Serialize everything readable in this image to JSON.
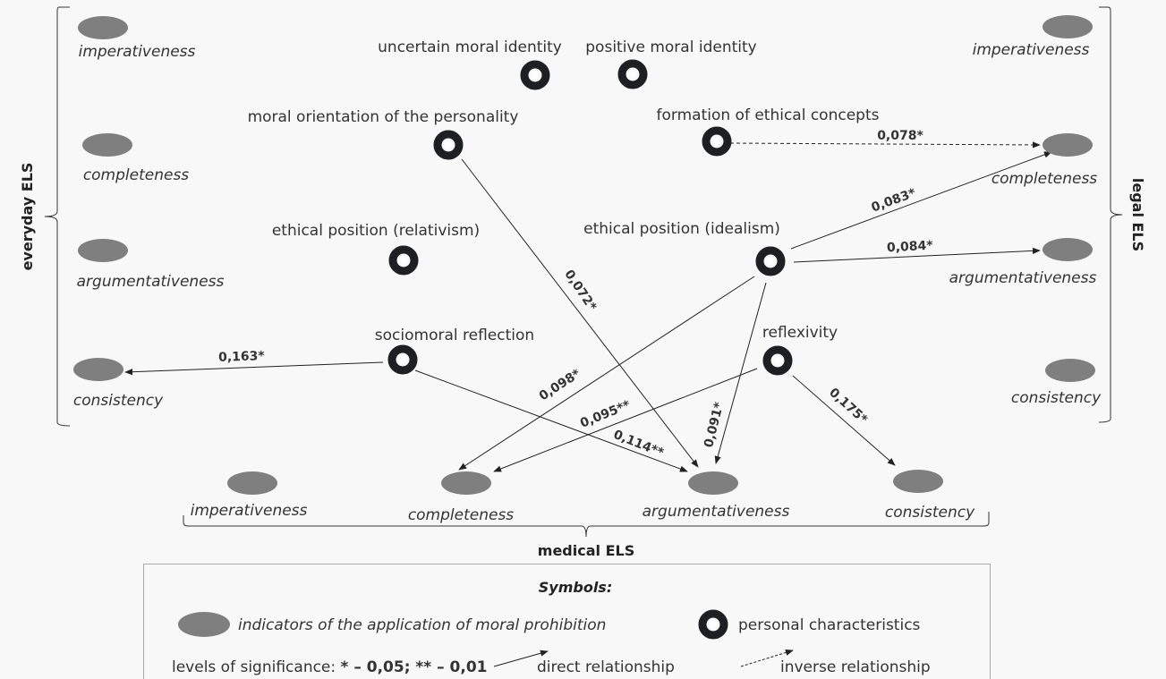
{
  "colors": {
    "indicator": "#7f7f7f",
    "node": "#1e1f22",
    "edge": "#222222",
    "background": "#f8f8f8"
  },
  "groups": {
    "everyday": "everyday ELS",
    "legal": "legal ELS",
    "medical": "medical ELS"
  },
  "personal_characteristics": [
    {
      "id": "uncertain",
      "label": "uncertain moral identity"
    },
    {
      "id": "positive",
      "label": "positive moral identity"
    },
    {
      "id": "orientation",
      "label": "moral orientation of the personality"
    },
    {
      "id": "formation",
      "label": "formation of ethical concepts"
    },
    {
      "id": "relativism",
      "label": "ethical position (relativism)"
    },
    {
      "id": "idealism",
      "label": "ethical position (idealism)"
    },
    {
      "id": "sociomoral",
      "label": "sociomoral reflection"
    },
    {
      "id": "reflexivity",
      "label": "reflexivity"
    }
  ],
  "indicators": [
    {
      "id": "e_imp",
      "group": "everyday",
      "label": "imperativeness"
    },
    {
      "id": "e_com",
      "group": "everyday",
      "label": "completeness"
    },
    {
      "id": "e_arg",
      "group": "everyday",
      "label": "argumentativeness"
    },
    {
      "id": "e_con",
      "group": "everyday",
      "label": "consistency"
    },
    {
      "id": "l_imp",
      "group": "legal",
      "label": "imperativeness"
    },
    {
      "id": "l_com",
      "group": "legal",
      "label": "completeness"
    },
    {
      "id": "l_arg",
      "group": "legal",
      "label": "argumentativeness"
    },
    {
      "id": "l_con",
      "group": "legal",
      "label": "consistency"
    },
    {
      "id": "m_imp",
      "group": "medical",
      "label": "imperativeness"
    },
    {
      "id": "m_com",
      "group": "medical",
      "label": "completeness"
    },
    {
      "id": "m_arg",
      "group": "medical",
      "label": "argumentativeness"
    },
    {
      "id": "m_con",
      "group": "medical",
      "label": "consistency"
    }
  ],
  "edges": [
    {
      "from": "formation",
      "to": "l_com",
      "label": "0,078*",
      "type": "inverse"
    },
    {
      "from": "idealism",
      "to": "l_com",
      "label": "0,083*",
      "type": "direct"
    },
    {
      "from": "idealism",
      "to": "l_arg",
      "label": "0,084*",
      "type": "direct"
    },
    {
      "from": "idealism",
      "to": "m_com",
      "label": "0,098*",
      "type": "direct"
    },
    {
      "from": "idealism",
      "to": "m_arg",
      "label": "0,091*",
      "type": "direct"
    },
    {
      "from": "orientation",
      "to": "m_arg",
      "label": "0,072*",
      "type": "direct"
    },
    {
      "from": "sociomoral",
      "to": "e_con",
      "label": "0,163*",
      "type": "direct"
    },
    {
      "from": "sociomoral",
      "to": "m_arg",
      "label": "0,114**",
      "type": "direct"
    },
    {
      "from": "reflexivity",
      "to": "m_com",
      "label": "0,095**",
      "type": "direct"
    },
    {
      "from": "reflexivity",
      "to": "m_con",
      "label": "0,175*",
      "type": "direct"
    }
  ],
  "legend": {
    "title": "Symbols:",
    "indicator": "indicators of the application of moral prohibition",
    "personal": "personal characteristics",
    "significance_prefix": "levels of significance: ",
    "significance_values": "* – 0,05; ** – 0,01",
    "direct": "direct relationship",
    "inverse": "inverse relationship"
  }
}
